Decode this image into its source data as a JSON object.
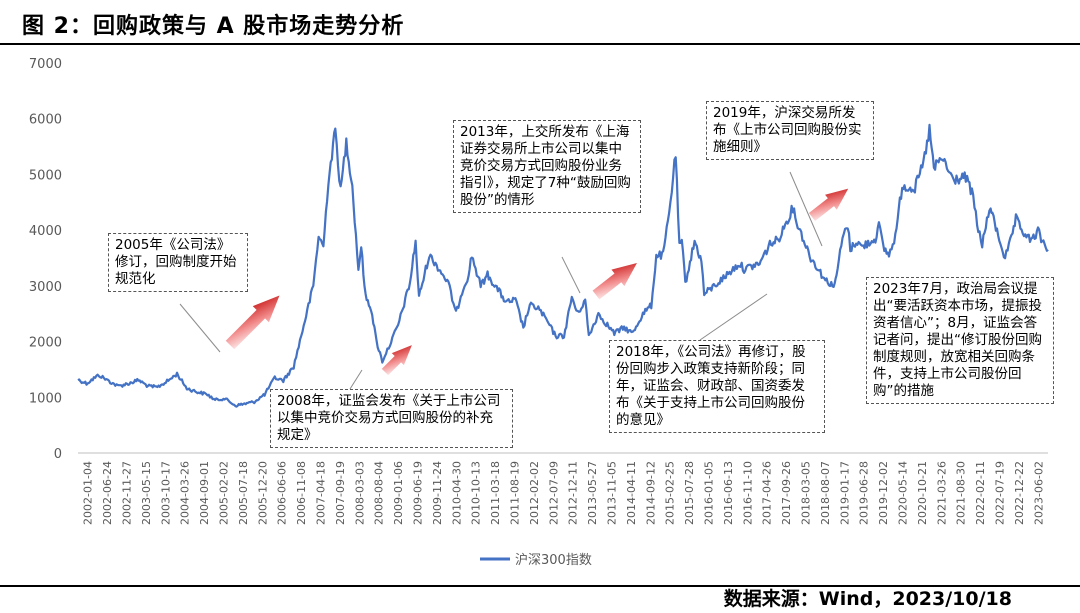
{
  "header": {
    "title": "图 2：回购政策与 A 股市场走势分析"
  },
  "source": "数据来源：Wind，2023/10/18",
  "chart_data": {
    "type": "line",
    "title": "",
    "xlabel": "",
    "ylabel": "",
    "ylim": [
      0,
      7000
    ],
    "yticks": [
      0,
      1000,
      2000,
      3000,
      4000,
      5000,
      6000,
      7000
    ],
    "grid": false,
    "legend_position": "bottom-center",
    "xtick_labels": [
      "2002-01-04",
      "2002-06-24",
      "2002-11-27",
      "2003-05-15",
      "2003-10-17",
      "2004-03-26",
      "2004-09-01",
      "2005-02-02",
      "2005-07-18",
      "2005-12-20",
      "2006-06-06",
      "2006-11-08",
      "2007-04-18",
      "2007-09-19",
      "2008-03-03",
      "2008-08-04",
      "2009-01-06",
      "2009-06-19",
      "2009-11-24",
      "2010-04-30",
      "2010-10-13",
      "2011-03-18",
      "2011-08-19",
      "2012-02-02",
      "2012-07-09",
      "2012-12-11",
      "2013-05-27",
      "2013-11-05",
      "2014-04-11",
      "2014-09-12",
      "2015-02-25",
      "2015-07-28",
      "2016-01-05",
      "2016-06-13",
      "2016-11-10",
      "2017-04-26",
      "2017-09-26",
      "2018-03-05",
      "2018-08-07",
      "2019-01-17",
      "2019-06-28",
      "2019-12-02",
      "2020-05-14",
      "2020-10-21",
      "2021-03-26",
      "2021-08-30",
      "2022-02-11",
      "2022-07-19",
      "2022-12-22",
      "2023-06-02"
    ],
    "series": [
      {
        "name": "沪深300指数",
        "color": "#4472c4",
        "points": [
          [
            "2002-01-04",
            1316
          ],
          [
            "2002-03-15",
            1250
          ],
          [
            "2002-06-24",
            1400
          ],
          [
            "2002-09-15",
            1290
          ],
          [
            "2002-11-27",
            1200
          ],
          [
            "2003-03-01",
            1250
          ],
          [
            "2003-05-15",
            1310
          ],
          [
            "2003-08-01",
            1200
          ],
          [
            "2003-10-17",
            1180
          ],
          [
            "2004-01-15",
            1300
          ],
          [
            "2004-03-26",
            1420
          ],
          [
            "2004-06-15",
            1160
          ],
          [
            "2004-09-01",
            1100
          ],
          [
            "2004-12-01",
            1050
          ],
          [
            "2005-02-02",
            950
          ],
          [
            "2005-04-20",
            980
          ],
          [
            "2005-07-18",
            850
          ],
          [
            "2005-10-20",
            890
          ],
          [
            "2005-12-20",
            920
          ],
          [
            "2006-03-15",
            1050
          ],
          [
            "2006-06-06",
            1350
          ],
          [
            "2006-08-15",
            1300
          ],
          [
            "2006-11-08",
            1550
          ],
          [
            "2007-01-20",
            2200
          ],
          [
            "2007-04-18",
            3000
          ],
          [
            "2007-06-01",
            3900
          ],
          [
            "2007-07-10",
            3700
          ],
          [
            "2007-08-20",
            4900
          ],
          [
            "2007-10-16",
            5800
          ],
          [
            "2007-11-28",
            4700
          ],
          [
            "2008-01-14",
            5600
          ],
          [
            "2008-03-03",
            4800
          ],
          [
            "2008-04-22",
            3300
          ],
          [
            "2008-05-15",
            3700
          ],
          [
            "2008-06-20",
            2800
          ],
          [
            "2008-08-04",
            2600
          ],
          [
            "2008-09-18",
            2000
          ],
          [
            "2008-11-04",
            1650
          ],
          [
            "2009-01-06",
            1950
          ],
          [
            "2009-03-15",
            2300
          ],
          [
            "2009-06-19",
            3050
          ],
          [
            "2009-08-04",
            3800
          ],
          [
            "2009-09-01",
            2800
          ],
          [
            "2009-11-24",
            3550
          ],
          [
            "2010-01-15",
            3400
          ],
          [
            "2010-04-30",
            3050
          ],
          [
            "2010-07-02",
            2500
          ],
          [
            "2010-08-20",
            2900
          ],
          [
            "2010-10-13",
            3200
          ],
          [
            "2010-11-08",
            3550
          ],
          [
            "2011-01-20",
            3000
          ],
          [
            "2011-03-18",
            3200
          ],
          [
            "2011-06-20",
            2900
          ],
          [
            "2011-08-19",
            2700
          ],
          [
            "2011-11-01",
            2750
          ],
          [
            "2012-01-05",
            2250
          ],
          [
            "2012-02-27",
            2650
          ],
          [
            "2012-05-07",
            2600
          ],
          [
            "2012-07-09",
            2400
          ],
          [
            "2012-09-26",
            2100
          ],
          [
            "2012-12-04",
            2100
          ],
          [
            "2013-02-06",
            2800
          ],
          [
            "2013-03-25",
            2500
          ],
          [
            "2013-05-27",
            2750
          ],
          [
            "2013-06-25",
            2100
          ],
          [
            "2013-09-12",
            2500
          ],
          [
            "2013-11-05",
            2350
          ],
          [
            "2014-01-20",
            2150
          ],
          [
            "2014-04-11",
            2250
          ],
          [
            "2014-06-20",
            2150
          ],
          [
            "2014-09-12",
            2500
          ],
          [
            "2014-11-20",
            2650
          ],
          [
            "2014-12-31",
            3550
          ],
          [
            "2015-02-25",
            3550
          ],
          [
            "2015-04-15",
            4300
          ],
          [
            "2015-06-08",
            5380
          ],
          [
            "2015-07-08",
            3700
          ],
          [
            "2015-07-28",
            3800
          ],
          [
            "2015-08-26",
            3050
          ],
          [
            "2015-11-10",
            3800
          ],
          [
            "2016-01-05",
            3450
          ],
          [
            "2016-01-28",
            2850
          ],
          [
            "2016-06-13",
            3100
          ],
          [
            "2016-11-10",
            3400
          ],
          [
            "2016-12-20",
            3300
          ],
          [
            "2017-04-26",
            3400
          ],
          [
            "2017-07-20",
            3750
          ],
          [
            "2017-09-26",
            3830
          ],
          [
            "2017-11-22",
            4100
          ],
          [
            "2018-01-24",
            4400
          ],
          [
            "2018-03-05",
            4100
          ],
          [
            "2018-06-20",
            3500
          ],
          [
            "2018-08-07",
            3350
          ],
          [
            "2018-10-18",
            3100
          ],
          [
            "2019-01-03",
            3000
          ],
          [
            "2019-01-17",
            3200
          ],
          [
            "2019-03-07",
            3850
          ],
          [
            "2019-04-19",
            4100
          ],
          [
            "2019-05-10",
            3650
          ],
          [
            "2019-06-28",
            3800
          ],
          [
            "2019-08-15",
            3700
          ],
          [
            "2019-12-02",
            3850
          ],
          [
            "2019-12-31",
            4100
          ],
          [
            "2020-02-03",
            3700
          ],
          [
            "2020-03-23",
            3550
          ],
          [
            "2020-05-14",
            3900
          ],
          [
            "2020-07-09",
            4800
          ],
          [
            "2020-10-21",
            4750
          ],
          [
            "2020-12-31",
            5200
          ],
          [
            "2021-02-18",
            5800
          ],
          [
            "2021-03-26",
            5100
          ],
          [
            "2021-06-01",
            5300
          ],
          [
            "2021-08-30",
            4900
          ],
          [
            "2021-12-13",
            4950
          ],
          [
            "2022-02-11",
            4600
          ],
          [
            "2022-03-15",
            4100
          ],
          [
            "2022-04-26",
            3750
          ],
          [
            "2022-07-04",
            4450
          ],
          [
            "2022-07-19",
            4250
          ],
          [
            "2022-10-31",
            3500
          ],
          [
            "2022-12-22",
            3850
          ],
          [
            "2023-01-28",
            4200
          ],
          [
            "2023-03-15",
            4000
          ],
          [
            "2023-06-02",
            3800
          ],
          [
            "2023-07-28",
            3980
          ],
          [
            "2023-09-01",
            3800
          ],
          [
            "2023-10-18",
            3650
          ]
        ]
      }
    ],
    "annotations": [
      {
        "text": "2005年《公司法》修订，回购制度开始规范化"
      },
      {
        "text": "2008年，证监会发布《关于上市公司以集中竞价交易方式回购股份的补充规定》"
      },
      {
        "text": "2013年，上交所发布《上海证券交易所上市公司以集中竞价交易方式回购股份业务指引》，规定了7种“鼓励回购股份”的情形"
      },
      {
        "text": "2018年，《公司法》再修订，股份回购步入政策支持新阶段；同年，证监会、财政部、国资委发布《关于支持上市公司回购股份的意见》"
      },
      {
        "text": "2019年，沪深交易所发布《上市公司回购股份实施细则》"
      },
      {
        "text": "2023年7月，政治局会议提出“要活跃资本市场，提振投资者信心”；8月，证监会答记者问，提出“修订股份回购制度规则，放宽相关回购条件，支持上市公司股份回购”的措施"
      }
    ]
  }
}
